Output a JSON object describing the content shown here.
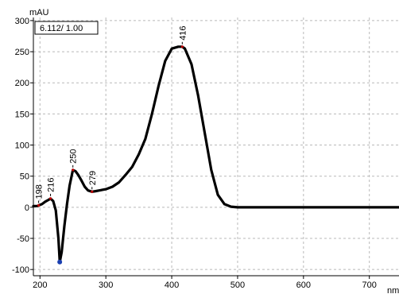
{
  "chart_data": {
    "type": "line",
    "ylabel": "mAU",
    "xunit_label": "nm",
    "info_box": "6.112/ 1.00",
    "xlim": [
      190,
      745
    ],
    "ylim": [
      -110,
      305
    ],
    "x_ticks": [
      200,
      300,
      400,
      500,
      600,
      700
    ],
    "y_ticks": [
      -100,
      -50,
      0,
      50,
      100,
      150,
      200,
      250,
      300
    ],
    "grid": true,
    "line_color": "#000000",
    "series": [
      {
        "x": [
          190,
          196,
          198,
          203,
          208,
          213,
          216,
          220,
          224,
          228,
          230,
          233,
          237,
          241,
          245,
          250,
          254,
          258,
          263,
          268,
          273,
          279,
          285,
          290,
          300,
          310,
          320,
          330,
          340,
          350,
          360,
          370,
          380,
          390,
          400,
          410,
          416,
          420,
          430,
          440,
          450,
          460,
          470,
          480,
          490,
          500,
          520,
          550,
          600,
          650,
          700,
          745
        ],
        "y": [
          2,
          2,
          3,
          5,
          9,
          12,
          14,
          10,
          -5,
          -50,
          -88,
          -72,
          -30,
          5,
          35,
          60,
          58,
          52,
          43,
          33,
          27,
          25,
          26,
          27,
          29,
          33,
          40,
          52,
          65,
          85,
          110,
          150,
          195,
          235,
          255,
          258,
          258,
          255,
          230,
          180,
          120,
          60,
          20,
          5,
          1,
          0,
          0,
          0,
          0,
          0,
          0,
          0
        ]
      }
    ],
    "peak_labels": [
      {
        "label": "198",
        "x": 198,
        "y": 3
      },
      {
        "label": "216",
        "x": 216,
        "y": 14
      },
      {
        "label": "250",
        "x": 250,
        "y": 60
      },
      {
        "label": "279",
        "x": 279,
        "y": 25
      },
      {
        "label": "416",
        "x": 416,
        "y": 258
      }
    ]
  }
}
